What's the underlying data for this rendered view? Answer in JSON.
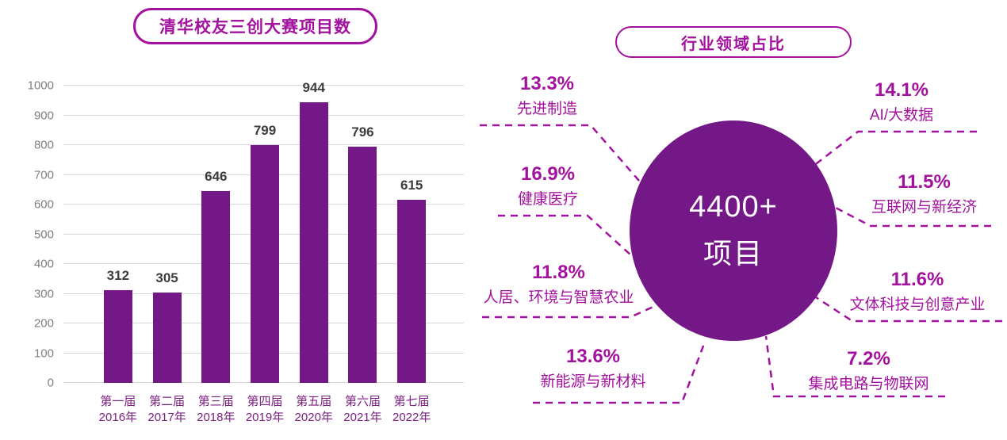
{
  "colors": {
    "deep_purple": "#751887",
    "magenta_accent": "#A3129E",
    "bar_value_label": "#3D3D3D",
    "axis_label": "#7F7F7F",
    "gridline": "#D9D9D9",
    "x_category_label": "#7B2182",
    "circle_text": "#FFFFFF"
  },
  "chart_data": [
    {
      "type": "bar",
      "title": "清华校友三创大赛项目数",
      "categories": [
        "第一届",
        "第二届",
        "第三届",
        "第四届",
        "第五届",
        "第六届",
        "第七届"
      ],
      "category_years": [
        "2016年",
        "2017年",
        "2018年",
        "2019年",
        "2020年",
        "2021年",
        "2022年"
      ],
      "values": [
        312,
        305,
        646,
        799,
        944,
        796,
        615
      ],
      "xlabel": "",
      "ylabel": "",
      "ylim": [
        0,
        1000
      ],
      "ytick_step": 100,
      "yticks": [
        0,
        100,
        200,
        300,
        400,
        500,
        600,
        700,
        800,
        900,
        1000
      ],
      "grid": true,
      "legend": false,
      "data_labels": true
    },
    {
      "type": "pie",
      "title": "行业领域占比",
      "center_value": "4400+",
      "center_label": "项目",
      "unit": "%",
      "labels": [
        "先进制造",
        "AI/大数据",
        "健康医疗",
        "互联网与新经济",
        "人居、环境与智慧农业",
        "文体科技与创意产业",
        "新能源与新材料",
        "集成电路与物联网"
      ],
      "values": [
        13.3,
        14.1,
        16.9,
        11.5,
        11.8,
        11.6,
        13.6,
        7.2
      ],
      "legend_position": "around-circle",
      "connector_style": "dashed"
    }
  ]
}
